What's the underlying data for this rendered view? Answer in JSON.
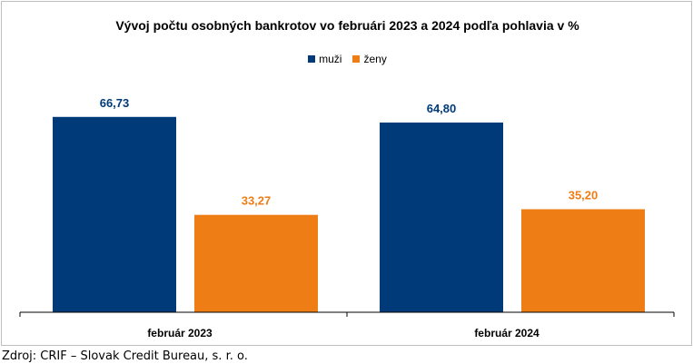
{
  "chart_data": {
    "type": "bar",
    "title": "Vývoj počtu osobných bankrotov vo februári 2023 a 2024 podľa pohlavia v %",
    "categories": [
      "február 2023",
      "február 2024"
    ],
    "series": [
      {
        "name": "muži",
        "values": [
          66.73,
          64.8
        ],
        "labels": [
          "66,73",
          "64,80"
        ],
        "color": "#003a78"
      },
      {
        "name": "ženy",
        "values": [
          33.27,
          35.2
        ],
        "labels": [
          "33,27",
          "35,20"
        ],
        "color": "#ed7d14"
      }
    ],
    "ylim": [
      0,
      80
    ],
    "grid": false,
    "legend": "top-center"
  },
  "source": "Zdroj: CRIF – Slovak Credit Bureau, s. r. o."
}
